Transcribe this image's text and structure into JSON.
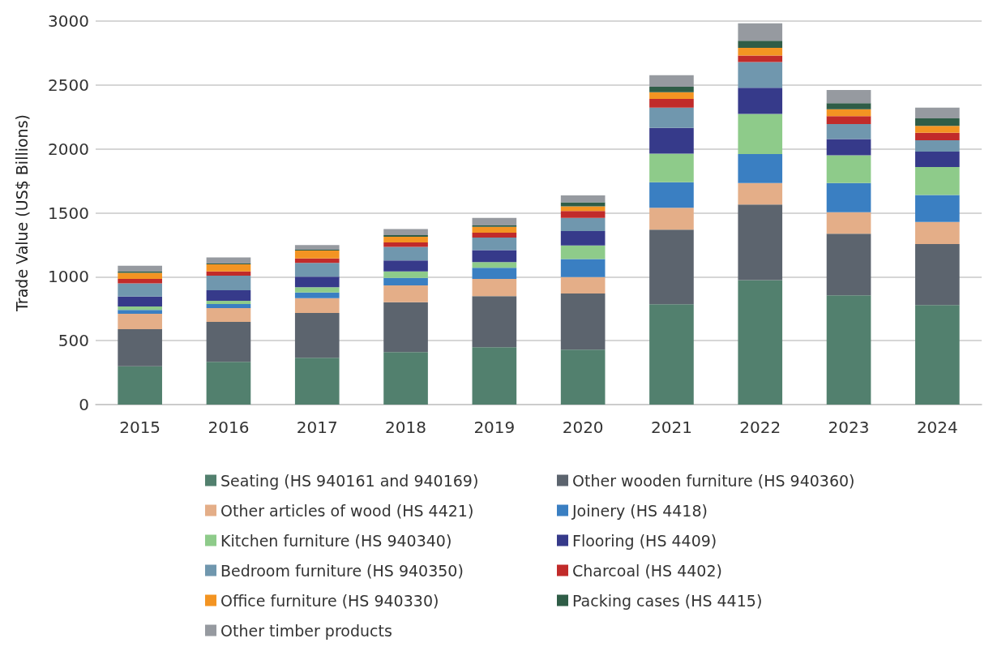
{
  "chart_data": {
    "type": "bar",
    "stacked": true,
    "ylabel": "Trade Value (US$ Billions)",
    "categories": [
      "2015",
      "2016",
      "2017",
      "2018",
      "2019",
      "2020",
      "2021",
      "2022",
      "2023",
      "2024"
    ],
    "ylim": [
      0,
      3000
    ],
    "yticks": [
      0,
      500,
      1000,
      1500,
      2000,
      2500,
      3000
    ],
    "grid": "y",
    "legend": "bottom",
    "series": [
      {
        "name": "Seating (HS 940161 and 940169)",
        "color": "#52806e",
        "values": [
          300,
          334,
          367,
          410,
          448,
          429,
          785,
          973,
          855,
          778
        ]
      },
      {
        "name": "Other wooden furniture (HS 940360)",
        "color": "#5c646e",
        "values": [
          290,
          313,
          350,
          390,
          401,
          440,
          584,
          592,
          482,
          478
        ]
      },
      {
        "name": "Other articles of wood (HS 4421)",
        "color": "#e4ae88",
        "values": [
          120,
          107,
          115,
          133,
          134,
          129,
          170,
          168,
          167,
          173
        ]
      },
      {
        "name": "Joinery (HS 4418)",
        "color": "#3a7fc2",
        "values": [
          30,
          33,
          45,
          58,
          88,
          140,
          200,
          227,
          229,
          211
        ]
      },
      {
        "name": "Kitchen furniture (HS 940340)",
        "color": "#8ecb8a",
        "values": [
          27,
          25,
          41,
          50,
          43,
          106,
          224,
          313,
          217,
          218
        ]
      },
      {
        "name": "Flooring (HS 4409)",
        "color": "#363a8a",
        "values": [
          78,
          82,
          82,
          86,
          95,
          114,
          201,
          206,
          127,
          121
        ]
      },
      {
        "name": "Bedroom furniture (HS 940350)",
        "color": "#7097ae",
        "values": [
          103,
          115,
          108,
          106,
          97,
          103,
          159,
          201,
          117,
          88
        ]
      },
      {
        "name": "Charcoal (HS 4402)",
        "color": "#c12b2a",
        "values": [
          35,
          32,
          36,
          36,
          39,
          54,
          68,
          51,
          62,
          60
        ]
      },
      {
        "name": "Office furniture (HS 940330)",
        "color": "#f39422",
        "values": [
          47,
          57,
          61,
          44,
          45,
          36,
          52,
          60,
          55,
          54
        ]
      },
      {
        "name": "Packing cases (HS 4415)",
        "color": "#2f5d47",
        "values": [
          10,
          5,
          6,
          13,
          11,
          31,
          44,
          55,
          47,
          58
        ]
      },
      {
        "name": "Other timber products",
        "color": "#969aa0",
        "values": [
          46,
          48,
          37,
          47,
          60,
          54,
          90,
          137,
          103,
          84
        ]
      }
    ]
  }
}
